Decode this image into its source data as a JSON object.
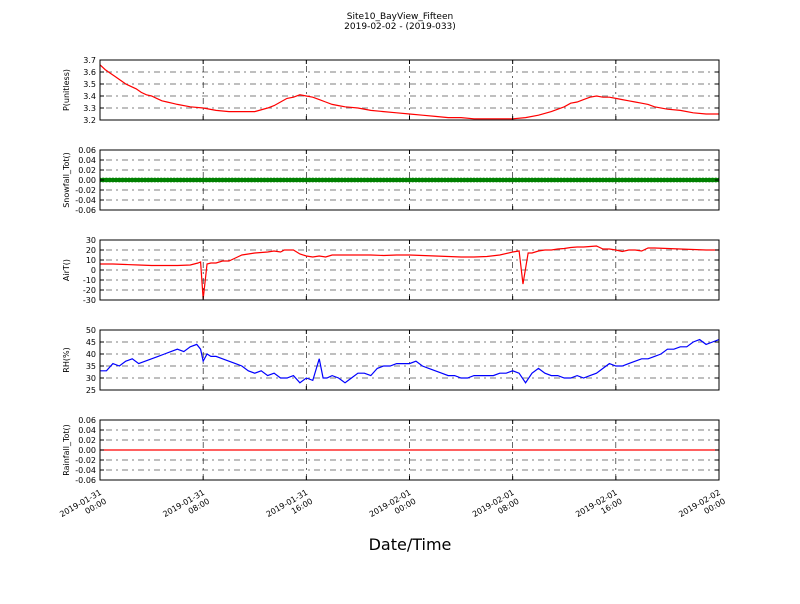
{
  "figure": {
    "title": "Site10_BayView_Fifteen",
    "subtitle": "2019-02-02 - (2019-033)",
    "xlabel": "Date/Time"
  },
  "chart_data": {
    "type": "line",
    "x_ticks": [
      [
        "2019-01-31",
        "00:00"
      ],
      [
        "2019-01-31",
        "08:00"
      ],
      [
        "2019-01-31",
        "16:00"
      ],
      [
        "2019-02-01",
        "00:00"
      ],
      [
        "2019-02-01",
        "08:00"
      ],
      [
        "2019-02-01",
        "16:00"
      ],
      [
        "2019-02-02",
        "00:00"
      ]
    ],
    "x_range_hours": [
      0,
      48
    ],
    "grid": true,
    "panels": [
      {
        "ylabel": "P(unitless)",
        "color": "#ff0000",
        "ylim": [
          3.2,
          3.7
        ],
        "yticks": [
          3.2,
          3.3,
          3.4,
          3.5,
          3.6,
          3.7
        ],
        "tick_decimals": 1,
        "marker": "line",
        "points": [
          [
            0,
            3.66
          ],
          [
            0.4,
            3.62
          ],
          [
            0.8,
            3.59
          ],
          [
            1.2,
            3.56
          ],
          [
            1.6,
            3.53
          ],
          [
            2,
            3.5
          ],
          [
            2.4,
            3.48
          ],
          [
            2.8,
            3.46
          ],
          [
            3.2,
            3.43
          ],
          [
            3.6,
            3.41
          ],
          [
            4,
            3.4
          ],
          [
            4.4,
            3.38
          ],
          [
            4.8,
            3.36
          ],
          [
            5.2,
            3.35
          ],
          [
            5.6,
            3.34
          ],
          [
            6,
            3.33
          ],
          [
            7,
            3.31
          ],
          [
            8,
            3.3
          ],
          [
            9,
            3.28
          ],
          [
            10,
            3.27
          ],
          [
            11,
            3.27
          ],
          [
            12,
            3.27
          ],
          [
            13,
            3.3
          ],
          [
            13.5,
            3.32
          ],
          [
            14,
            3.35
          ],
          [
            14.5,
            3.38
          ],
          [
            15,
            3.39
          ],
          [
            15.5,
            3.41
          ],
          [
            16,
            3.4
          ],
          [
            16.5,
            3.39
          ],
          [
            17,
            3.37
          ],
          [
            17.5,
            3.35
          ],
          [
            18,
            3.33
          ],
          [
            18.5,
            3.32
          ],
          [
            19,
            3.31
          ],
          [
            20,
            3.3
          ],
          [
            21,
            3.28
          ],
          [
            22,
            3.27
          ],
          [
            23,
            3.26
          ],
          [
            24,
            3.25
          ],
          [
            25,
            3.24
          ],
          [
            26,
            3.23
          ],
          [
            27,
            3.22
          ],
          [
            28,
            3.22
          ],
          [
            29,
            3.21
          ],
          [
            30,
            3.21
          ],
          [
            31,
            3.21
          ],
          [
            32,
            3.21
          ],
          [
            33,
            3.22
          ],
          [
            34,
            3.24
          ],
          [
            35,
            3.27
          ],
          [
            36,
            3.31
          ],
          [
            36.5,
            3.34
          ],
          [
            37,
            3.35
          ],
          [
            37.5,
            3.37
          ],
          [
            38,
            3.39
          ],
          [
            38.5,
            3.4
          ],
          [
            39,
            3.39
          ],
          [
            39.5,
            3.39
          ],
          [
            40,
            3.38
          ],
          [
            40.5,
            3.37
          ],
          [
            41,
            3.36
          ],
          [
            41.5,
            3.35
          ],
          [
            42,
            3.34
          ],
          [
            42.5,
            3.33
          ],
          [
            43,
            3.31
          ],
          [
            44,
            3.29
          ],
          [
            45,
            3.28
          ],
          [
            46,
            3.26
          ],
          [
            47,
            3.25
          ],
          [
            48,
            3.25
          ]
        ]
      },
      {
        "ylabel": "Snowfall_Tot()",
        "color": "#008000",
        "ylim": [
          -0.06,
          0.06
        ],
        "yticks": [
          -0.06,
          -0.04,
          -0.02,
          0.0,
          0.02,
          0.04,
          0.06
        ],
        "tick_decimals": 2,
        "marker": "dots",
        "constant_value": 0.0,
        "points": [
          [
            0,
            0.0
          ],
          [
            48,
            0.0
          ]
        ]
      },
      {
        "ylabel": "AirT()",
        "color": "#ff0000",
        "ylim": [
          -30,
          30
        ],
        "yticks": [
          -30,
          -20,
          -10,
          0,
          10,
          20,
          30
        ],
        "tick_decimals": 0,
        "marker": "line",
        "points": [
          [
            0,
            6
          ],
          [
            1,
            6
          ],
          [
            2,
            5.5
          ],
          [
            3,
            5
          ],
          [
            4,
            4.5
          ],
          [
            5,
            4.5
          ],
          [
            6,
            4.5
          ],
          [
            7,
            5
          ],
          [
            7.6,
            7
          ],
          [
            7.8,
            8
          ],
          [
            8,
            -29
          ],
          [
            8.3,
            6
          ],
          [
            8.6,
            7
          ],
          [
            9,
            7
          ],
          [
            9.5,
            9
          ],
          [
            10,
            9
          ],
          [
            10.5,
            12
          ],
          [
            11,
            15
          ],
          [
            11.5,
            16
          ],
          [
            12,
            17
          ],
          [
            13,
            18
          ],
          [
            13.5,
            19
          ],
          [
            14,
            18
          ],
          [
            14.3,
            20
          ],
          [
            15,
            20
          ],
          [
            15.5,
            16
          ],
          [
            16,
            14
          ],
          [
            16.5,
            13
          ],
          [
            17,
            14
          ],
          [
            17.5,
            13
          ],
          [
            18,
            15
          ],
          [
            19,
            15
          ],
          [
            20,
            15
          ],
          [
            21,
            15
          ],
          [
            22,
            14.5
          ],
          [
            23,
            15
          ],
          [
            24,
            15
          ],
          [
            25,
            14.5
          ],
          [
            26,
            14
          ],
          [
            27,
            13.5
          ],
          [
            28,
            13
          ],
          [
            29,
            13
          ],
          [
            30,
            13.5
          ],
          [
            31,
            15
          ],
          [
            32,
            18
          ],
          [
            32.5,
            19
          ],
          [
            32.8,
            -14
          ],
          [
            33.2,
            17
          ],
          [
            33.5,
            17
          ],
          [
            34,
            19
          ],
          [
            34.5,
            20
          ],
          [
            35,
            20
          ],
          [
            35.5,
            21
          ],
          [
            36,
            21.5
          ],
          [
            36.5,
            22.5
          ],
          [
            37,
            23
          ],
          [
            37.5,
            23
          ],
          [
            38,
            23.5
          ],
          [
            38.5,
            24
          ],
          [
            39,
            21
          ],
          [
            39.5,
            21
          ],
          [
            40,
            20
          ],
          [
            40.5,
            18.5
          ],
          [
            41,
            20
          ],
          [
            41.5,
            20
          ],
          [
            42,
            19
          ],
          [
            42.5,
            22
          ],
          [
            43,
            22
          ],
          [
            44,
            21.5
          ],
          [
            45,
            21
          ],
          [
            46,
            20.5
          ],
          [
            47,
            20
          ],
          [
            48,
            20
          ]
        ]
      },
      {
        "ylabel": "RH(%)",
        "color": "#0000ff",
        "ylim": [
          25,
          50
        ],
        "yticks": [
          25,
          30,
          35,
          40,
          45,
          50
        ],
        "tick_decimals": 0,
        "marker": "line",
        "points": [
          [
            0,
            33
          ],
          [
            0.5,
            33
          ],
          [
            1,
            36
          ],
          [
            1.5,
            35
          ],
          [
            2,
            37
          ],
          [
            2.5,
            38
          ],
          [
            3,
            36
          ],
          [
            3.5,
            37
          ],
          [
            4,
            38
          ],
          [
            4.5,
            39
          ],
          [
            5,
            40
          ],
          [
            5.5,
            41
          ],
          [
            6,
            42
          ],
          [
            6.5,
            41
          ],
          [
            7,
            43
          ],
          [
            7.5,
            44
          ],
          [
            7.8,
            42
          ],
          [
            8,
            37
          ],
          [
            8.3,
            40
          ],
          [
            8.6,
            39
          ],
          [
            9,
            39
          ],
          [
            9.5,
            38
          ],
          [
            10,
            37
          ],
          [
            10.5,
            36
          ],
          [
            11,
            35
          ],
          [
            11.5,
            33
          ],
          [
            12,
            32
          ],
          [
            12.5,
            33
          ],
          [
            13,
            31
          ],
          [
            13.5,
            32
          ],
          [
            14,
            30
          ],
          [
            14.5,
            30
          ],
          [
            15,
            31
          ],
          [
            15.5,
            28
          ],
          [
            16,
            30
          ],
          [
            16.5,
            29
          ],
          [
            17,
            38
          ],
          [
            17.3,
            30
          ],
          [
            17.6,
            30
          ],
          [
            18,
            31
          ],
          [
            18.5,
            30
          ],
          [
            19,
            28
          ],
          [
            19.5,
            30
          ],
          [
            20,
            32
          ],
          [
            20.5,
            32
          ],
          [
            21,
            31
          ],
          [
            21.5,
            34
          ],
          [
            22,
            35
          ],
          [
            22.5,
            35
          ],
          [
            23,
            36
          ],
          [
            23.5,
            36
          ],
          [
            24,
            36
          ],
          [
            24.5,
            37
          ],
          [
            25,
            35
          ],
          [
            25.5,
            34
          ],
          [
            26,
            33
          ],
          [
            26.5,
            32
          ],
          [
            27,
            31
          ],
          [
            27.5,
            31
          ],
          [
            28,
            30
          ],
          [
            28.5,
            30
          ],
          [
            29,
            31
          ],
          [
            29.5,
            31
          ],
          [
            30,
            31
          ],
          [
            30.5,
            31
          ],
          [
            31,
            32
          ],
          [
            31.5,
            32
          ],
          [
            32,
            33
          ],
          [
            32.5,
            32
          ],
          [
            33,
            28
          ],
          [
            33.5,
            32
          ],
          [
            34,
            34
          ],
          [
            34.5,
            32
          ],
          [
            35,
            31
          ],
          [
            35.5,
            31
          ],
          [
            36,
            30
          ],
          [
            36.5,
            30
          ],
          [
            37,
            31
          ],
          [
            37.5,
            30
          ],
          [
            38,
            31
          ],
          [
            38.5,
            32
          ],
          [
            39,
            34
          ],
          [
            39.5,
            36
          ],
          [
            40,
            35
          ],
          [
            40.5,
            35
          ],
          [
            41,
            36
          ],
          [
            41.5,
            37
          ],
          [
            42,
            38
          ],
          [
            42.5,
            38
          ],
          [
            43,
            39
          ],
          [
            43.5,
            40
          ],
          [
            44,
            42
          ],
          [
            44.5,
            42
          ],
          [
            45,
            43
          ],
          [
            45.5,
            43
          ],
          [
            46,
            45
          ],
          [
            46.5,
            46
          ],
          [
            47,
            44
          ],
          [
            47.5,
            45
          ],
          [
            48,
            46
          ]
        ]
      },
      {
        "ylabel": "Rainfall_Tot()",
        "color": "#ff0000",
        "ylim": [
          -0.06,
          0.06
        ],
        "yticks": [
          -0.06,
          -0.04,
          -0.02,
          0.0,
          0.02,
          0.04,
          0.06
        ],
        "tick_decimals": 2,
        "marker": "line",
        "points": [
          [
            0,
            0.0
          ],
          [
            48,
            0.0
          ]
        ]
      }
    ]
  }
}
